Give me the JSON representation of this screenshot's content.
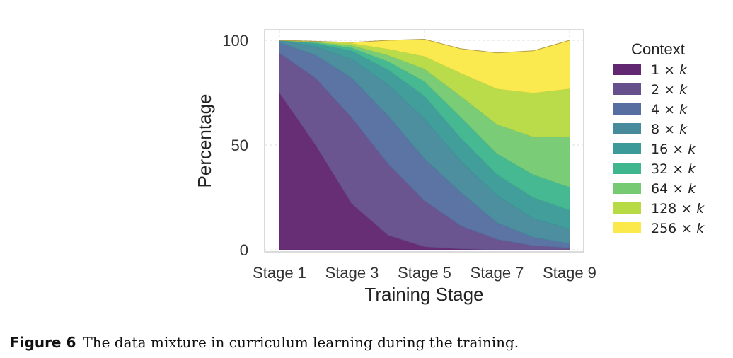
{
  "chart_data": {
    "type": "area",
    "stacked": true,
    "xlabel": "Training Stage",
    "ylabel": "Percentage",
    "ylim": [
      0,
      100
    ],
    "yticks": [
      0,
      50,
      100
    ],
    "x": [
      1,
      2,
      3,
      4,
      5,
      6,
      7,
      8,
      9
    ],
    "xtick_positions": [
      1,
      3,
      5,
      7,
      9
    ],
    "xtick_labels": [
      "Stage 1",
      "Stage 3",
      "Stage 5",
      "Stage 7",
      "Stage 9"
    ],
    "grid": true,
    "legend_title": "Context",
    "legend_placement": "right",
    "series": [
      {
        "name": "1",
        "color": "#622771",
        "values": [
          75,
          50,
          22,
          7,
          1.5,
          0.5,
          0,
          0,
          0
        ]
      },
      {
        "name": "2",
        "color": "#65508c",
        "values": [
          19,
          32,
          41,
          34,
          22,
          11,
          5,
          2,
          1
        ]
      },
      {
        "name": "4",
        "color": "#566fa0",
        "values": [
          5,
          11,
          19,
          23,
          20,
          16,
          8,
          4,
          2
        ]
      },
      {
        "name": "8",
        "color": "#478a9c",
        "values": [
          1,
          4,
          9,
          15,
          19,
          15,
          13,
          9,
          7
        ]
      },
      {
        "name": "16",
        "color": "#3c9b98",
        "values": [
          0,
          1.5,
          4,
          7,
          11,
          11,
          10,
          10,
          9
        ]
      },
      {
        "name": "32",
        "color": "#40b68e",
        "values": [
          0,
          0.5,
          1.5,
          4,
          7,
          10,
          10,
          11,
          11
        ]
      },
      {
        "name": "64",
        "color": "#76cb72",
        "values": [
          0,
          0.3,
          1.2,
          3,
          6,
          10,
          14,
          18,
          24
        ]
      },
      {
        "name": "128",
        "color": "#b8da44",
        "values": [
          0,
          0.2,
          1,
          3,
          6,
          11,
          17,
          21,
          23
        ]
      },
      {
        "name": "256",
        "color": "#fbe84a",
        "values": [
          0,
          0,
          0.3,
          4,
          8,
          11.5,
          17,
          20,
          23
        ]
      }
    ]
  },
  "legend_suffix": "× k",
  "caption": {
    "label": "Figure 6",
    "text": "The data mixture in curriculum learning during the training."
  }
}
